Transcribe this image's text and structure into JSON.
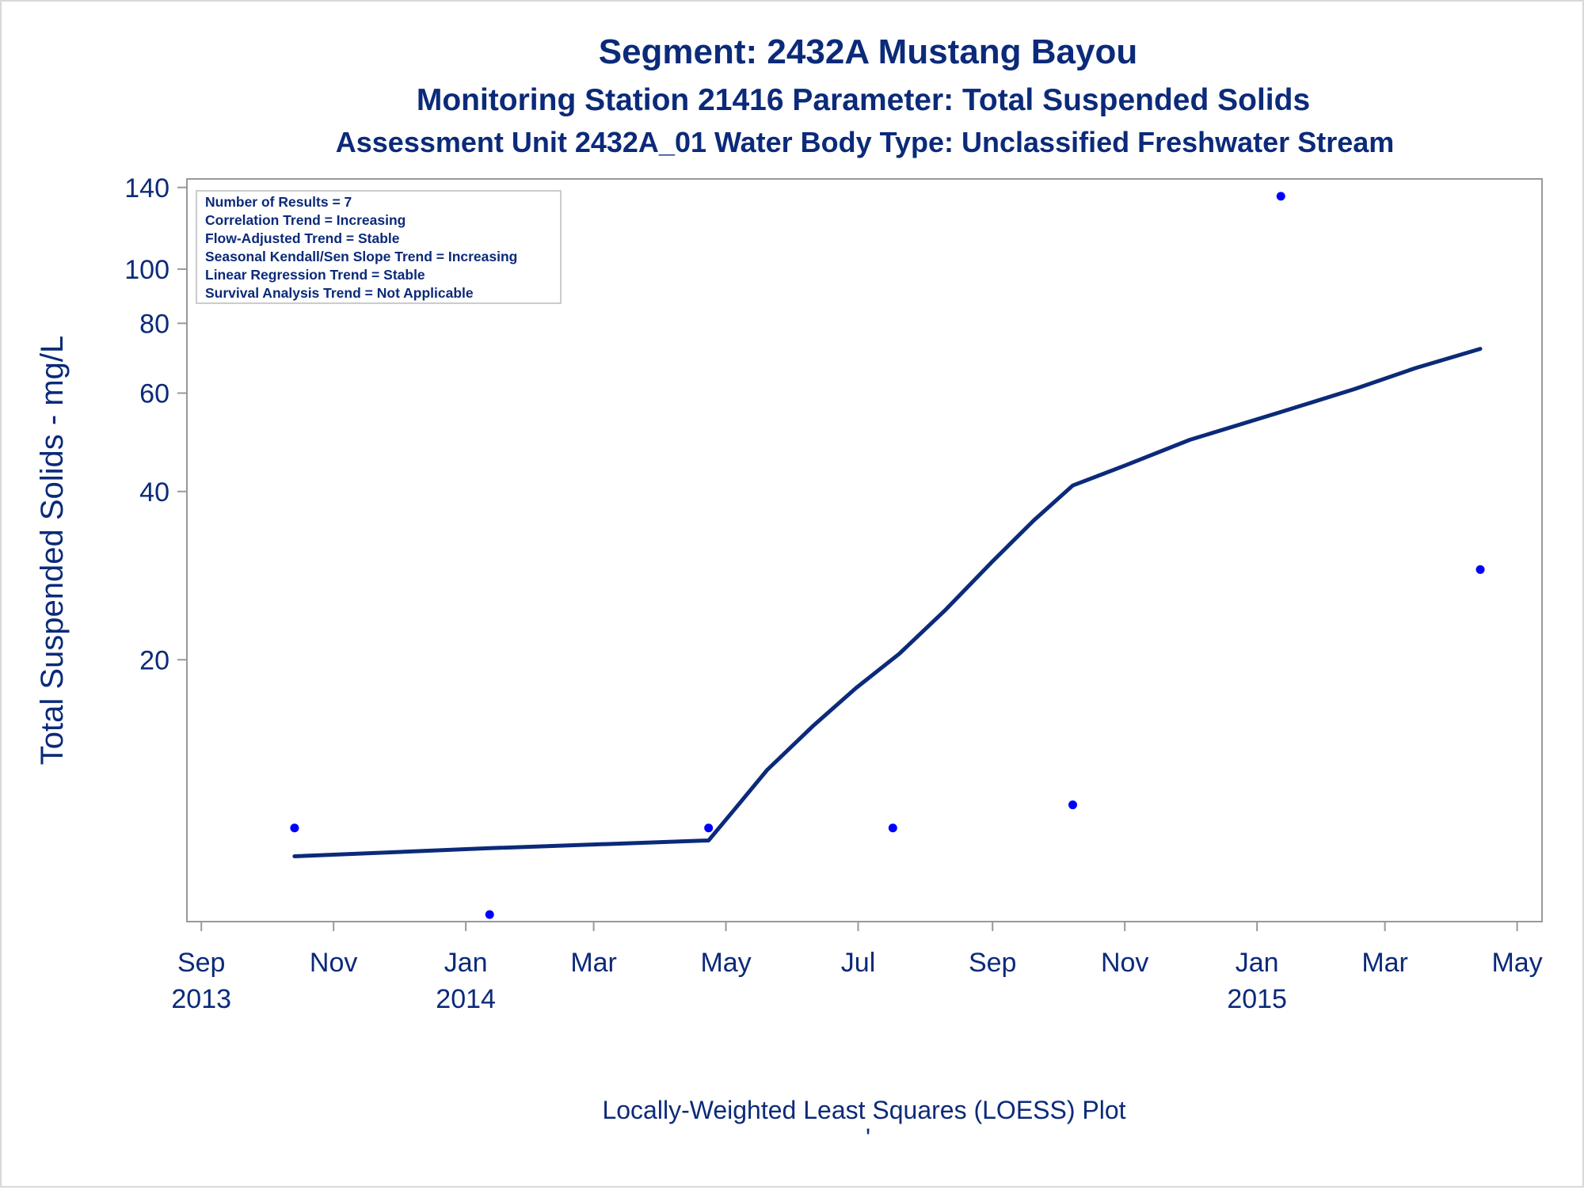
{
  "titles": {
    "title": "Segment: 2432A  Mustang Bayou",
    "subtitle1": "Monitoring Station 21416 Parameter: Total Suspended Solids",
    "subtitle2": "Assessment Unit 2432A_01   Water Body Type: Unclassified Freshwater Stream"
  },
  "footnote": "Locally-Weighted Least Squares (LOESS) Plot",
  "footnote2": "'",
  "stats_box": [
    "Number of Results = 7",
    "Correlation Trend = Increasing",
    "Flow-Adjusted Trend = Stable",
    "Seasonal Kendall/Sen Slope Trend = Increasing",
    "Linear Regression Trend = Stable",
    "Survival Analysis Trend = Not Applicable"
  ],
  "colors": {
    "text": "#0b2a79",
    "points": "#0000ff",
    "loess": "#0b2a79",
    "axis": "#999999"
  },
  "chart_data": {
    "type": "scatter",
    "xlabel": "",
    "ylabel": "Total Suspended Solids - mg/L",
    "y_scale": "log",
    "xlim": [
      "2013-08-29",
      "2015-05-07"
    ],
    "ylim": [
      6.8,
      145
    ],
    "y_ticks": [
      20,
      40,
      60,
      80,
      100,
      140
    ],
    "x_ticks": [
      {
        "date": "2013-09-01",
        "line1": "Sep",
        "line2": "2013"
      },
      {
        "date": "2013-11-01",
        "line1": "Nov",
        "line2": ""
      },
      {
        "date": "2014-01-01",
        "line1": "Jan",
        "line2": "2014"
      },
      {
        "date": "2014-03-01",
        "line1": "Mar",
        "line2": ""
      },
      {
        "date": "2014-05-01",
        "line1": "May",
        "line2": ""
      },
      {
        "date": "2014-07-01",
        "line1": "Jul",
        "line2": ""
      },
      {
        "date": "2014-09-01",
        "line1": "Sep",
        "line2": ""
      },
      {
        "date": "2014-11-01",
        "line1": "Nov",
        "line2": ""
      },
      {
        "date": "2015-01-01",
        "line1": "Jan",
        "line2": "2015"
      },
      {
        "date": "2015-03-01",
        "line1": "Mar",
        "line2": ""
      },
      {
        "date": "2015-05-01",
        "line1": "May",
        "line2": ""
      }
    ],
    "points": [
      {
        "x": "2013-10-14",
        "y": 10
      },
      {
        "x": "2014-01-12",
        "y": 7
      },
      {
        "x": "2014-04-23",
        "y": 10
      },
      {
        "x": "2014-07-17",
        "y": 10
      },
      {
        "x": "2014-10-08",
        "y": 11
      },
      {
        "x": "2015-01-12",
        "y": 135
      },
      {
        "x": "2015-04-14",
        "y": 29
      }
    ],
    "loess_curve": [
      {
        "x": "2013-10-14",
        "y": 8.9
      },
      {
        "x": "2014-01-12",
        "y": 9.2
      },
      {
        "x": "2014-04-23",
        "y": 9.5
      },
      {
        "x": "2014-05-05",
        "y": 10.8
      },
      {
        "x": "2014-05-20",
        "y": 12.7
      },
      {
        "x": "2014-06-10",
        "y": 15.2
      },
      {
        "x": "2014-06-30",
        "y": 17.8
      },
      {
        "x": "2014-07-20",
        "y": 20.5
      },
      {
        "x": "2014-08-10",
        "y": 24.5
      },
      {
        "x": "2014-09-01",
        "y": 30
      },
      {
        "x": "2014-09-20",
        "y": 35.5
      },
      {
        "x": "2014-10-08",
        "y": 41
      },
      {
        "x": "2014-11-01",
        "y": 44.5
      },
      {
        "x": "2014-12-01",
        "y": 49.5
      },
      {
        "x": "2015-01-12",
        "y": 55.5
      },
      {
        "x": "2015-02-15",
        "y": 61
      },
      {
        "x": "2015-03-15",
        "y": 66.5
      },
      {
        "x": "2015-04-14",
        "y": 72
      }
    ]
  }
}
